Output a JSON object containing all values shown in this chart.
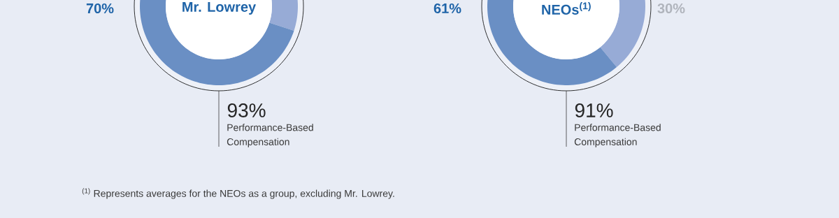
{
  "chart_data": [
    {
      "type": "donut",
      "title": "Mr. Lowrey",
      "categories": [
        null,
        null
      ],
      "values": [
        23,
        70
      ],
      "colors": [
        "#97abd6",
        "#6a8fc4"
      ],
      "value_labels": [
        null,
        "70%"
      ],
      "annotations": [
        "93%",
        "Performance-Based Compensation",
        "$^{(1)}$ Represents averages for the NEOs as a group, excluding Mr. Lowrey."
      ]
    },
    {
      "type": "donut",
      "title": "NEOs$^{(1)}$",
      "categories": [
        null,
        null
      ],
      "values": [
        30,
        61
      ],
      "colors": [
        "#97abd6",
        "#6a8fc4"
      ],
      "value_labels": [
        "30%",
        "61%"
      ],
      "annotations": [
        "91%",
        "Performance-Based Compensation"
      ]
    }
  ]
}
